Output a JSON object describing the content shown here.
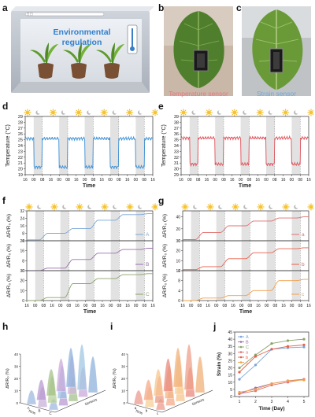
{
  "panel_labels": [
    "a",
    "b",
    "c",
    "d",
    "e",
    "f",
    "g",
    "h",
    "i",
    "j"
  ],
  "panel_a": {
    "title_line1": "Environmental",
    "title_line2": "regulation"
  },
  "panel_b": {
    "caption": "Temperature sensor"
  },
  "panel_c": {
    "caption": "Strain sensor"
  },
  "colors": {
    "temp_d": "#3a8fd6",
    "temp_e": "#e0505a",
    "cap_b": "#e8777e",
    "cap_c": "#6fa7d8",
    "curve_A": "#7aa6d8",
    "curve_B": "#9a6fb0",
    "curve_C": "#8aa36a",
    "curve_a": "#e07070",
    "curve_b": "#e8604a",
    "curve_c": "#f0a04a"
  },
  "chart_data": [
    {
      "type": "line",
      "panel": "d",
      "xlabel": "Time",
      "ylabel": "Temperature (°C)",
      "xtick_labels": [
        "16",
        "00",
        "08",
        "16",
        "00",
        "08",
        "16",
        "00",
        "08",
        "16",
        "00",
        "08",
        "16",
        "00",
        "08",
        "16"
      ],
      "yticks": [
        19,
        20,
        21,
        22,
        23,
        24,
        25,
        26,
        27,
        28,
        29
      ],
      "ylim": [
        19,
        29
      ],
      "day_level": 25.2,
      "night_level": 20.3
    },
    {
      "type": "line",
      "panel": "e",
      "xlabel": "Time",
      "ylabel": "Temperature (°C)",
      "xtick_labels": [
        "16",
        "00",
        "08",
        "16",
        "00",
        "08",
        "16",
        "00",
        "08",
        "16",
        "00",
        "08",
        "16",
        "00",
        "08",
        "16"
      ],
      "yticks": [
        29,
        30,
        31,
        32,
        33,
        34,
        35,
        36,
        37,
        38,
        39
      ],
      "ylim": [
        29,
        39
      ],
      "day_level": 35.3,
      "night_level": 30.8
    },
    {
      "type": "line",
      "panel": "f",
      "xlabel": "Time",
      "xtick_labels": [
        "16",
        "00",
        "08",
        "16",
        "00",
        "08",
        "16",
        "00",
        "08",
        "16",
        "00",
        "08",
        "16",
        "00",
        "08",
        "16"
      ],
      "subplots": [
        {
          "ylabel": "ΔR/R₀ (%)",
          "legend": "A",
          "yticks": [
            0,
            8,
            16,
            24,
            32
          ],
          "ylim": [
            0,
            32
          ],
          "steps": [
            1,
            8,
            13,
            22,
            28,
            29
          ]
        },
        {
          "ylabel": "ΔR/R₀ (%)",
          "legend": "B",
          "yticks": [
            0,
            8,
            16,
            24
          ],
          "ylim": [
            0,
            24
          ],
          "steps": [
            0,
            2,
            9,
            14,
            17,
            18
          ]
        },
        {
          "ylabel": "ΔR/R₀ (%)",
          "legend": "C",
          "yticks": [
            0,
            10,
            20,
            30
          ],
          "ylim": [
            0,
            30
          ],
          "steps": [
            0,
            3,
            17,
            22,
            26,
            27
          ]
        }
      ]
    },
    {
      "type": "line",
      "panel": "g",
      "xlabel": "Time",
      "xtick_labels": [
        "16",
        "00",
        "08",
        "16",
        "00",
        "08",
        "16",
        "00",
        "08",
        "16",
        "00",
        "08",
        "16",
        "00",
        "08",
        "16"
      ],
      "subplots": [
        {
          "ylabel": "ΔR/R₀ (%)",
          "legend": "a",
          "yticks": [
            0,
            20,
            40
          ],
          "ylim": [
            0,
            50
          ],
          "steps": [
            2,
            14,
            25,
            33,
            38,
            40
          ]
        },
        {
          "ylabel": "ΔR/R₀ (%)",
          "legend": "b",
          "yticks": [
            0,
            10,
            20,
            30
          ],
          "ylim": [
            0,
            30
          ],
          "steps": [
            1,
            4,
            12,
            18,
            22,
            23
          ]
        },
        {
          "ylabel": "ΔR/R₀ (%)",
          "legend": "c",
          "yticks": [
            0,
            4,
            8,
            12
          ],
          "ylim": [
            0,
            12
          ],
          "steps": [
            0,
            1,
            2,
            4,
            8,
            8.5
          ]
        }
      ]
    },
    {
      "type": "area",
      "panel": "h",
      "zlabel": "ΔR/R₀ (%)",
      "zticks": [
        0,
        10,
        20,
        30,
        40
      ],
      "depth_labels": [
        "A",
        "B",
        "C"
      ],
      "axis_left": "Time",
      "axis_right": "Sensors"
    },
    {
      "type": "area",
      "panel": "i",
      "zlabel": "ΔR/R₀ (%)",
      "zticks": [
        0,
        10,
        20,
        30,
        40
      ],
      "depth_labels": [
        "a",
        "b",
        "c"
      ],
      "axis_left": "Time",
      "axis_right": "Sensors"
    },
    {
      "type": "line",
      "panel": "j",
      "xlabel": "Time (Day)",
      "ylabel": "Strain (%)",
      "x": [
        1,
        2,
        3,
        4,
        5
      ],
      "ylim": [
        0,
        45
      ],
      "yticks": [
        0,
        5,
        10,
        15,
        20,
        25,
        30,
        35,
        40,
        45
      ],
      "series": [
        {
          "name": "A",
          "color": "#7aa6d8",
          "values": [
            12,
            22,
            33,
            34,
            34.5
          ]
        },
        {
          "name": "B",
          "color": "#9a6fb0",
          "values": [
            2,
            6,
            9,
            11,
            12
          ]
        },
        {
          "name": "C",
          "color": "#8aa36a",
          "values": [
            20,
            29,
            37,
            39,
            40
          ]
        },
        {
          "name": "a",
          "color": "#e07070",
          "values": [
            2,
            4,
            8,
            10,
            12
          ]
        },
        {
          "name": "b",
          "color": "#e8604a",
          "values": [
            17,
            28,
            33,
            35,
            36
          ]
        },
        {
          "name": "c",
          "color": "#f0a04a",
          "values": [
            3,
            5,
            9,
            11,
            11.5
          ]
        }
      ]
    }
  ]
}
